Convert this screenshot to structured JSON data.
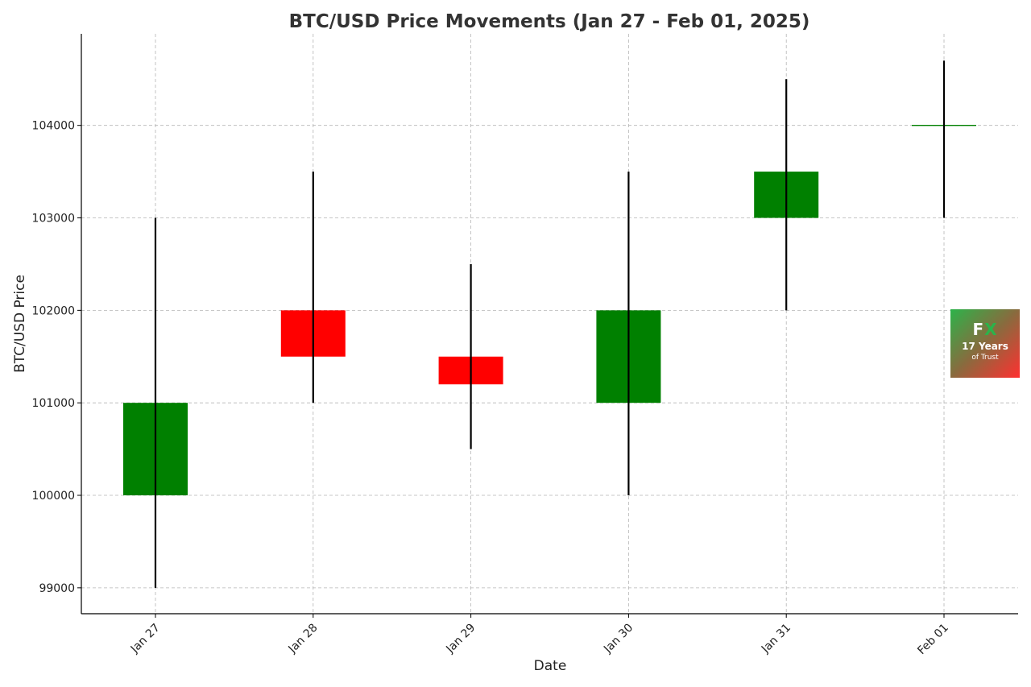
{
  "chart_data": {
    "type": "candlestick",
    "title": "BTC/USD Price Movements (Jan 27 - Feb 01, 2025)",
    "xlabel": "Date",
    "ylabel": "BTC/USD Price",
    "categories": [
      "Jan 27",
      "Jan 28",
      "Jan 29",
      "Jan 30",
      "Jan 31",
      "Feb 01"
    ],
    "candles": [
      {
        "date": "Jan 27",
        "open": 100000,
        "high": 103000,
        "low": 99000,
        "close": 101000
      },
      {
        "date": "Jan 28",
        "open": 102000,
        "high": 103500,
        "low": 101000,
        "close": 101500
      },
      {
        "date": "Jan 29",
        "open": 101500,
        "high": 102500,
        "low": 100500,
        "close": 101200
      },
      {
        "date": "Jan 30",
        "open": 101000,
        "high": 103500,
        "low": 100000,
        "close": 102000
      },
      {
        "date": "Jan 31",
        "open": 103000,
        "high": 104500,
        "low": 102000,
        "close": 103500
      },
      {
        "date": "Feb 01",
        "open": 104000,
        "high": 104700,
        "low": 103000,
        "close": 104000
      }
    ],
    "yticks": [
      99000,
      100000,
      101000,
      102000,
      103000,
      104000
    ],
    "ylim": [
      98720,
      104990
    ],
    "grid": true,
    "up_color": "#008000",
    "down_color": "#ff0000",
    "wick_color": "#000000"
  },
  "watermark": {
    "logo": "FX",
    "line1": "17 Years",
    "line2": "of Trust"
  }
}
